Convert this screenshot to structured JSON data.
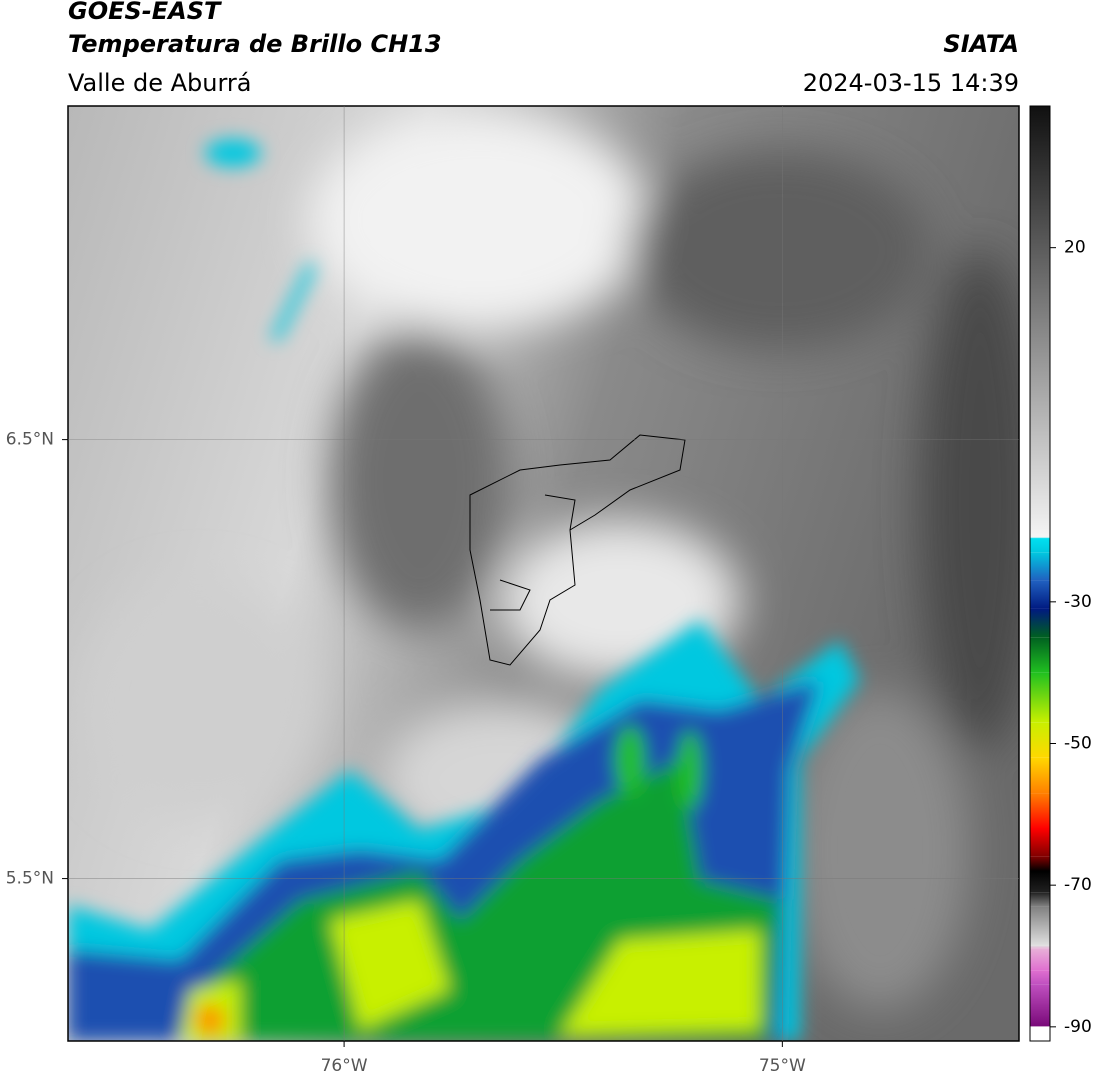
{
  "header": {
    "title": "GOES-EAST",
    "subtitle": "Temperatura de Brillo CH13",
    "region": "Valle de Aburrá",
    "source": "SIATA",
    "timestamp": "2024-03-15 14:39"
  },
  "map": {
    "xlim": [
      -76.63,
      -74.46
    ],
    "ylim": [
      5.13,
      7.26
    ],
    "lat_ticks": [
      {
        "value": 6.5,
        "label": "6.5°N"
      },
      {
        "value": 5.5,
        "label": "5.5°N"
      }
    ],
    "lon_ticks": [
      {
        "value": -76,
        "label": "76°W"
      },
      {
        "value": -75,
        "label": "75°W"
      }
    ],
    "grid": true
  },
  "colorbar": {
    "lim": [
      -92,
      40
    ],
    "ticks": [
      20,
      -30,
      -50,
      -70,
      -90
    ],
    "colormap": [
      {
        "value": -92,
        "color": "#ffffff"
      },
      {
        "value": -90,
        "color": "#ffffff"
      },
      {
        "value": -89.9,
        "color": "#7a0a7a"
      },
      {
        "value": -84,
        "color": "#c050c0"
      },
      {
        "value": -82,
        "color": "#e070d0"
      },
      {
        "value": -79,
        "color": "#e8b0d8"
      },
      {
        "value": -78.5,
        "color": "#e0e0e0"
      },
      {
        "value": -73,
        "color": "#808080"
      },
      {
        "value": -71,
        "color": "#202020"
      },
      {
        "value": -68,
        "color": "#000000"
      },
      {
        "value": -66,
        "color": "#800000"
      },
      {
        "value": -62,
        "color": "#ff0000"
      },
      {
        "value": -57,
        "color": "#ff8000"
      },
      {
        "value": -52,
        "color": "#ffd800"
      },
      {
        "value": -47,
        "color": "#c8f000"
      },
      {
        "value": -40,
        "color": "#20c020"
      },
      {
        "value": -35,
        "color": "#006020"
      },
      {
        "value": -31,
        "color": "#001a80"
      },
      {
        "value": -27,
        "color": "#2060c0"
      },
      {
        "value": -23,
        "color": "#00c8e0"
      },
      {
        "value": -21,
        "color": "#00e0f0"
      },
      {
        "value": -20.9,
        "color": "#f5f5f5"
      },
      {
        "value": 40,
        "color": "#101010"
      }
    ]
  }
}
